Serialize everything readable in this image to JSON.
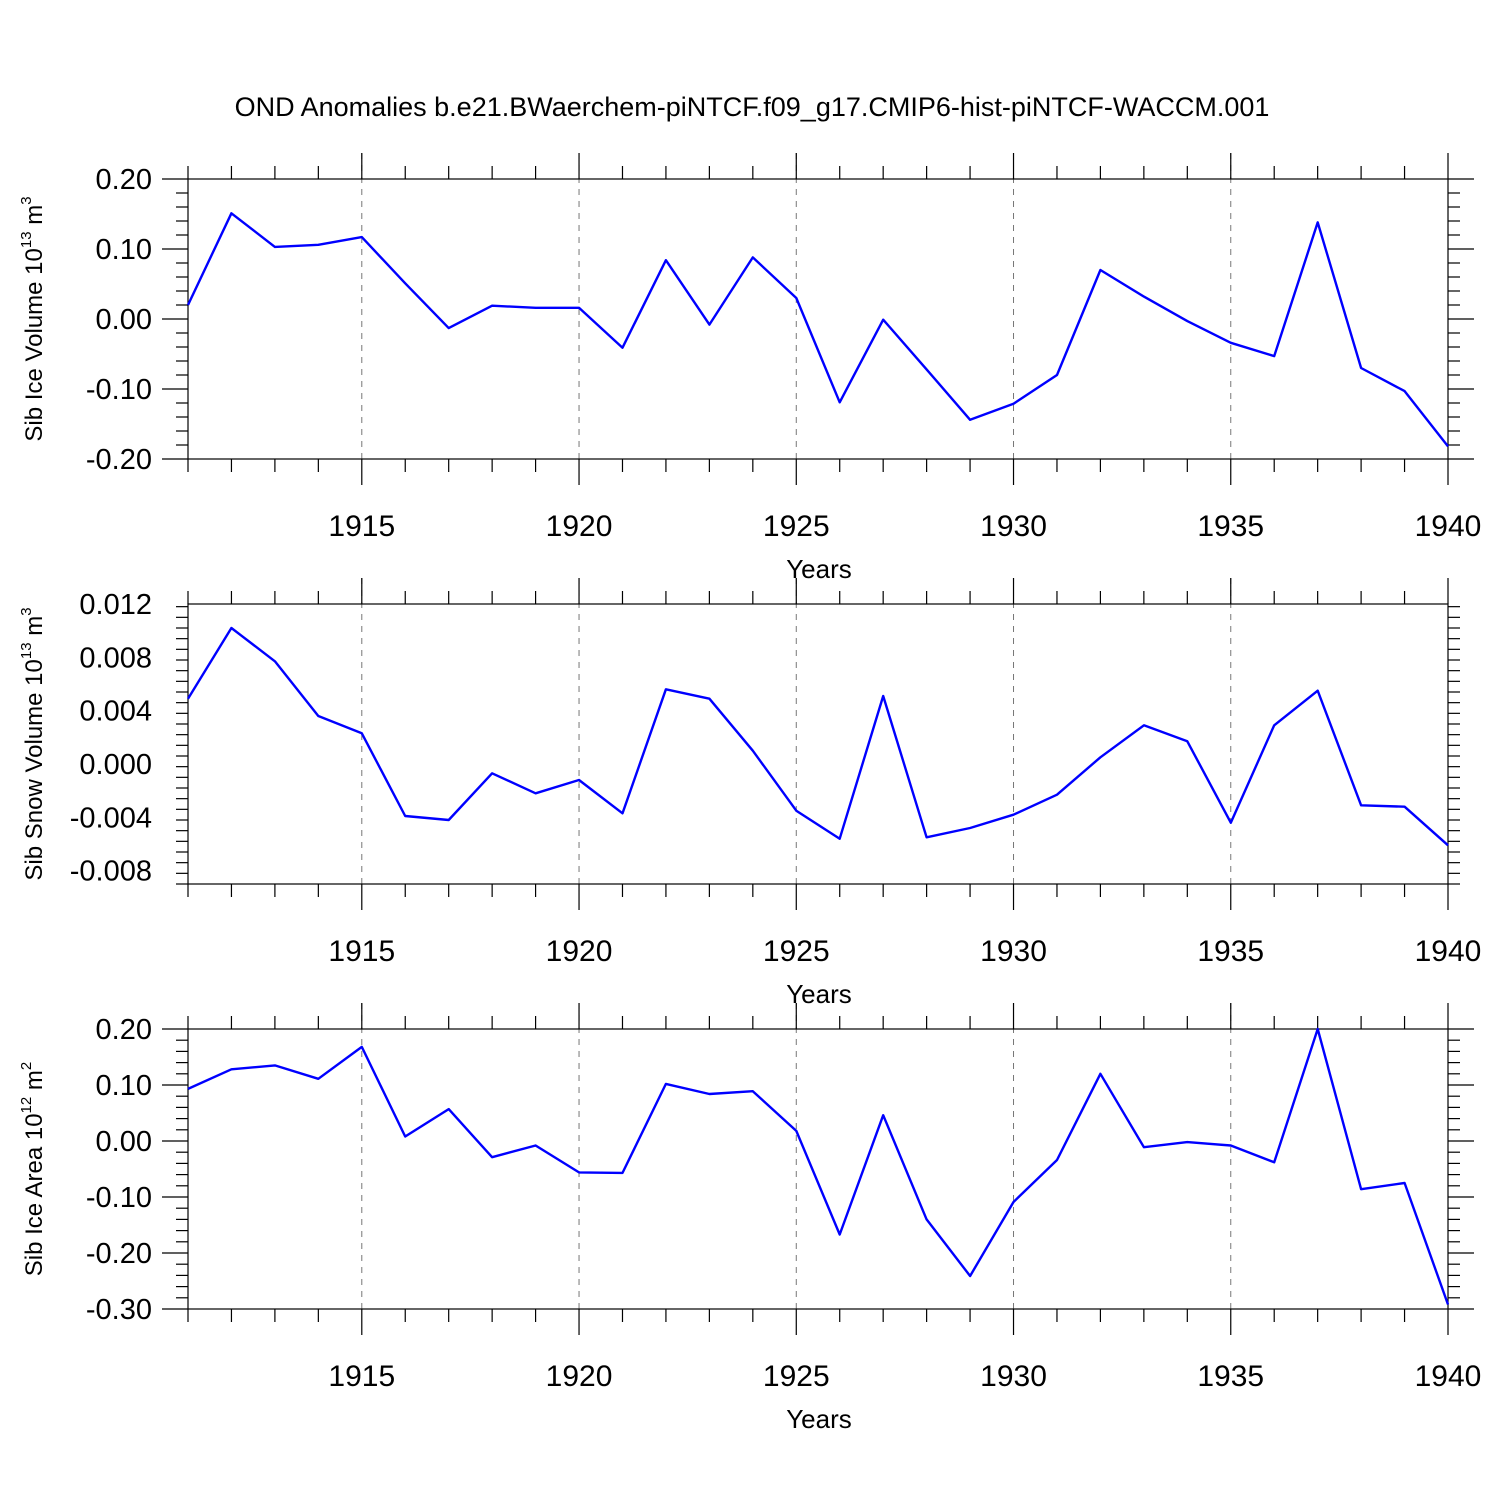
{
  "title": "OND Anomalies b.e21.BWaerchem-piNTCF.f09_g17.CMIP6-hist-piNTCF-WACCM.001",
  "colors": {
    "series": "#0000ff",
    "axes": "#000000",
    "grid": "#777777"
  },
  "chart_data": [
    {
      "type": "line",
      "ylabel_main": "Sib Ice Volume 10",
      "ylabel_sup": "13",
      "ylabel_unit": " m",
      "ylabel_unit_sup": "3",
      "xlabel": "Years",
      "xlim": [
        1911,
        1940
      ],
      "ylim": [
        -0.2,
        0.2
      ],
      "yticks": [
        0.2,
        0.1,
        0.0,
        -0.1,
        -0.2
      ],
      "ytick_labels": [
        "0.20",
        "0.10",
        "0.00",
        "-0.10",
        "-0.20"
      ],
      "xticks": [
        1915,
        1920,
        1925,
        1930,
        1935,
        1940
      ],
      "xtick_labels": [
        "1915",
        "1920",
        "1925",
        "1930",
        "1935",
        "1940"
      ],
      "grid_x": [
        1915,
        1920,
        1925,
        1930,
        1935
      ],
      "x": [
        1911,
        1912,
        1913,
        1914,
        1915,
        1916,
        1917,
        1918,
        1919,
        1920,
        1921,
        1922,
        1923,
        1924,
        1925,
        1926,
        1927,
        1928,
        1929,
        1930,
        1931,
        1932,
        1933,
        1934,
        1935,
        1936,
        1937,
        1938,
        1939,
        1940
      ],
      "values": [
        0.02,
        0.151,
        0.103,
        0.106,
        0.117,
        0.051,
        -0.013,
        0.019,
        0.016,
        0.016,
        -0.041,
        0.084,
        -0.008,
        0.088,
        0.03,
        -0.119,
        -0.001,
        -0.072,
        -0.144,
        -0.121,
        -0.08,
        0.07,
        0.032,
        -0.003,
        -0.034,
        -0.053,
        0.138,
        -0.07,
        -0.103,
        -0.182
      ]
    },
    {
      "type": "line",
      "ylabel_main": "Sib Snow Volume 10",
      "ylabel_sup": "13",
      "ylabel_unit": " m",
      "ylabel_unit_sup": "3",
      "xlabel": "Years",
      "xlim": [
        1911,
        1940
      ],
      "ylim": [
        -0.009,
        0.012
      ],
      "yticks": [
        0.012,
        0.008,
        0.004,
        0.0,
        -0.004,
        -0.008
      ],
      "ytick_labels": [
        "0.012",
        "0.008",
        "0.004",
        "0.000",
        "-0.004",
        "-0.008"
      ],
      "xticks": [
        1915,
        1920,
        1925,
        1930,
        1935,
        1940
      ],
      "xtick_labels": [
        "1915",
        "1920",
        "1925",
        "1930",
        "1935",
        "1940"
      ],
      "grid_x": [
        1915,
        1920,
        1925,
        1930,
        1935
      ],
      "x": [
        1911,
        1912,
        1913,
        1914,
        1915,
        1916,
        1917,
        1918,
        1919,
        1920,
        1921,
        1922,
        1923,
        1924,
        1925,
        1926,
        1927,
        1928,
        1929,
        1930,
        1931,
        1932,
        1933,
        1934,
        1935,
        1936,
        1937,
        1938,
        1939,
        1940
      ],
      "values": [
        0.0049,
        0.0102,
        0.0077,
        0.0036,
        0.0023,
        -0.0039,
        -0.0042,
        -0.0007,
        -0.0022,
        -0.0012,
        -0.0037,
        0.0056,
        0.0049,
        0.001,
        -0.0035,
        -0.0056,
        0.0051,
        -0.0055,
        -0.0048,
        -0.0038,
        -0.0023,
        0.0005,
        0.0029,
        0.0017,
        -0.0044,
        0.0029,
        0.0055,
        -0.0031,
        -0.0032,
        -0.0061
      ]
    },
    {
      "type": "line",
      "ylabel_main": "Sib Ice Area 10",
      "ylabel_sup": "12",
      "ylabel_unit": " m",
      "ylabel_unit_sup": "2",
      "xlabel": "Years",
      "xlim": [
        1911,
        1940
      ],
      "ylim": [
        -0.3,
        0.2
      ],
      "yticks": [
        0.2,
        0.1,
        0.0,
        -0.1,
        -0.2,
        -0.3
      ],
      "ytick_labels": [
        "0.20",
        "0.10",
        "0.00",
        "-0.10",
        "-0.20",
        "-0.30"
      ],
      "xticks": [
        1915,
        1920,
        1925,
        1930,
        1935,
        1940
      ],
      "xtick_labels": [
        "1915",
        "1920",
        "1925",
        "1930",
        "1935",
        "1940"
      ],
      "grid_x": [
        1915,
        1920,
        1925,
        1930,
        1935
      ],
      "x": [
        1911,
        1912,
        1913,
        1914,
        1915,
        1916,
        1917,
        1918,
        1919,
        1920,
        1921,
        1922,
        1923,
        1924,
        1925,
        1926,
        1927,
        1928,
        1929,
        1930,
        1931,
        1932,
        1933,
        1934,
        1935,
        1936,
        1937,
        1938,
        1939,
        1940
      ],
      "values": [
        0.093,
        0.128,
        0.135,
        0.111,
        0.168,
        0.008,
        0.057,
        -0.029,
        -0.008,
        -0.056,
        -0.057,
        0.102,
        0.084,
        0.089,
        0.018,
        -0.167,
        0.046,
        -0.14,
        -0.241,
        -0.109,
        -0.034,
        0.12,
        -0.011,
        -0.002,
        -0.008,
        -0.038,
        0.2,
        -0.086,
        -0.075,
        -0.292
      ]
    }
  ]
}
